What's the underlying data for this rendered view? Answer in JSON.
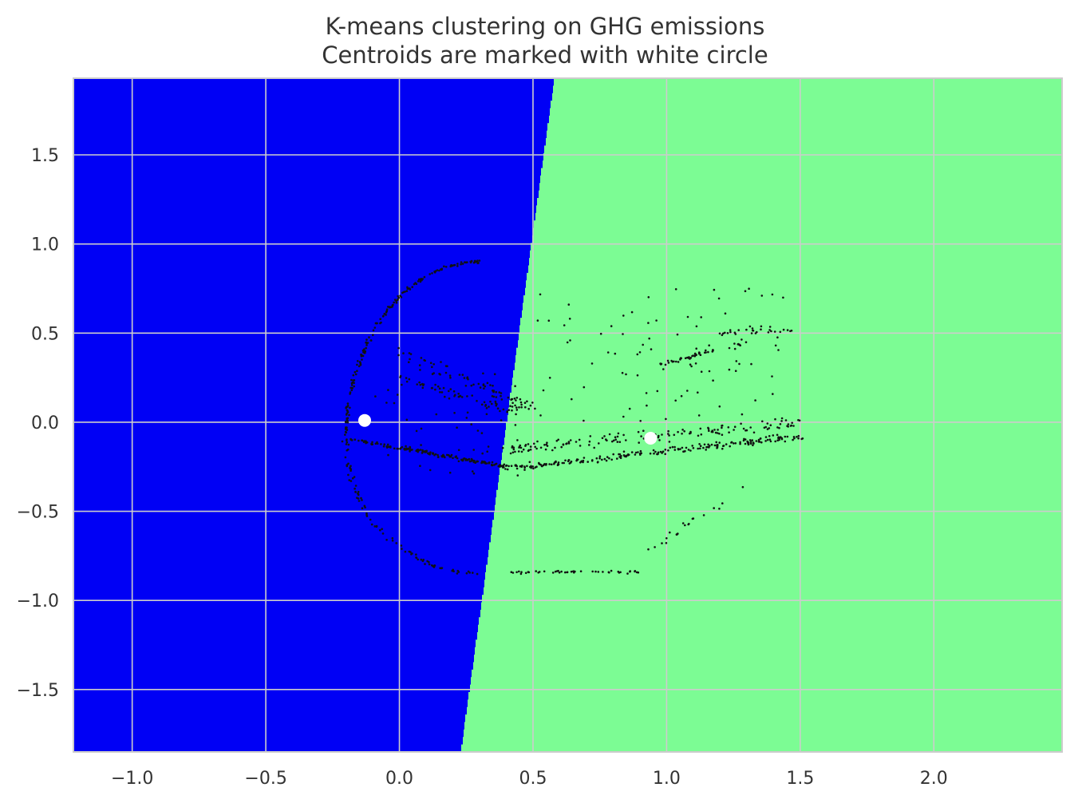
{
  "chart_data": {
    "type": "scatter",
    "title": "K-means clustering on GHG emissions",
    "subtitle": "Centroids are marked with white circle",
    "xlabel": "",
    "ylabel": "",
    "xlim": [
      -1.22,
      2.48
    ],
    "ylim": [
      -1.85,
      1.93
    ],
    "xticks": [
      -1.0,
      -0.5,
      0.0,
      0.5,
      1.0,
      1.5,
      2.0
    ],
    "xtick_labels": [
      "−1.0",
      "−0.5",
      "0.0",
      "0.5",
      "1.0",
      "1.5",
      "2.0"
    ],
    "yticks": [
      1.5,
      1.0,
      0.5,
      0.0,
      -0.5,
      -1.0,
      -1.5
    ],
    "ytick_labels": [
      "1.5",
      "1.0",
      "0.5",
      "0.0",
      "−0.5",
      "−1.0",
      "−1.5"
    ],
    "grid": true,
    "regions": [
      {
        "cluster": 0,
        "color": "#0000f5"
      },
      {
        "cluster": 1,
        "color": "#7cfc94"
      }
    ],
    "decision_boundary": [
      [
        0.58,
        1.93
      ],
      [
        0.23,
        -1.85
      ]
    ],
    "centroids": [
      {
        "cluster": 0,
        "x": -0.13,
        "y": 0.01,
        "color": "#ffffff"
      },
      {
        "cluster": 1,
        "x": 0.94,
        "y": -0.09,
        "color": "#ffffff"
      }
    ],
    "point_color": "#111111",
    "point_groups": [
      {
        "shape": "arc",
        "cx": 0.3,
        "cy": -0.1,
        "rx": 0.5,
        "ry": 1.0,
        "t_range": [
          90,
          180
        ],
        "n": 180,
        "jitter": 0.012
      },
      {
        "shape": "arc",
        "cx": 0.3,
        "cy": -0.1,
        "rx": 0.5,
        "ry": 0.75,
        "t_range": [
          180,
          270
        ],
        "n": 90,
        "jitter": 0.02
      },
      {
        "shape": "line",
        "from": [
          -0.2,
          -0.09
        ],
        "to": [
          0.4,
          -0.25
        ],
        "n": 160,
        "jitter": 0.015
      },
      {
        "shape": "line",
        "from": [
          0.4,
          -0.26
        ],
        "to": [
          1.5,
          -0.08
        ],
        "n": 220,
        "jitter": 0.03
      },
      {
        "shape": "line",
        "from": [
          0.4,
          -0.15
        ],
        "to": [
          1.5,
          0.0
        ],
        "n": 140,
        "jitter": 0.05
      },
      {
        "shape": "line",
        "from": [
          0.0,
          0.4
        ],
        "to": [
          0.5,
          0.08
        ],
        "n": 70,
        "jitter": 0.05
      },
      {
        "shape": "line",
        "from": [
          0.0,
          0.25
        ],
        "to": [
          0.45,
          0.05
        ],
        "n": 50,
        "jitter": 0.04
      },
      {
        "shape": "line",
        "from": [
          0.97,
          0.32
        ],
        "to": [
          1.32,
          0.46
        ],
        "n": 45,
        "jitter": 0.015
      },
      {
        "shape": "line",
        "from": [
          1.2,
          0.5
        ],
        "to": [
          1.47,
          0.52
        ],
        "n": 25,
        "jitter": 0.02
      },
      {
        "shape": "line",
        "from": [
          0.4,
          -0.84
        ],
        "to": [
          0.9,
          -0.84
        ],
        "n": 45,
        "jitter": 0.012
      },
      {
        "shape": "line",
        "from": [
          0.9,
          -0.75
        ],
        "to": [
          1.3,
          -0.35
        ],
        "n": 20,
        "jitter": 0.03
      },
      {
        "shape": "box",
        "x": [
          0.5,
          1.45
        ],
        "y": [
          0.0,
          0.75
        ],
        "n": 90
      },
      {
        "shape": "box",
        "x": [
          -0.1,
          0.45
        ],
        "y": [
          -0.3,
          0.3
        ],
        "n": 60
      }
    ]
  }
}
